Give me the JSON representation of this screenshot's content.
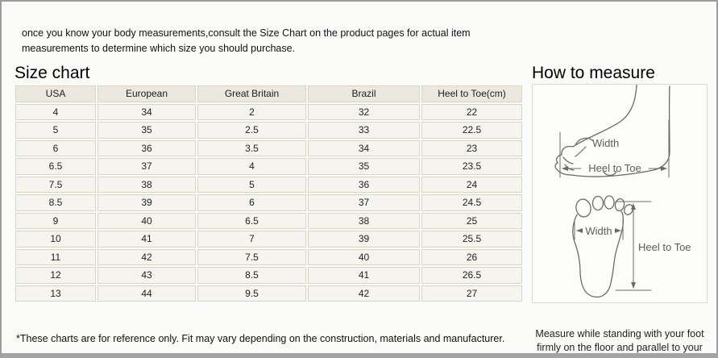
{
  "intro_text": "once you know your body measurements,consult the Size Chart on the product pages for actual item measurements to determine which size you should purchase.",
  "size_chart": {
    "title": "Size chart",
    "columns": [
      "USA",
      "European",
      "Great Britain",
      "Brazil",
      "Heel to Toe(cm)"
    ],
    "rows": [
      [
        "4",
        "34",
        "2",
        "32",
        "22"
      ],
      [
        "5",
        "35",
        "2.5",
        "33",
        "22.5"
      ],
      [
        "6",
        "36",
        "3.5",
        "34",
        "23"
      ],
      [
        "6.5",
        "37",
        "4",
        "35",
        "23.5"
      ],
      [
        "7.5",
        "38",
        "5",
        "36",
        "24"
      ],
      [
        "8.5",
        "39",
        "6",
        "37",
        "24.5"
      ],
      [
        "9",
        "40",
        "6.5",
        "38",
        "25"
      ],
      [
        "10",
        "41",
        "7",
        "39",
        "25.5"
      ],
      [
        "11",
        "42",
        "7.5",
        "40",
        "26"
      ],
      [
        "12",
        "43",
        "8.5",
        "41",
        "26.5"
      ],
      [
        "13",
        "44",
        "9.5",
        "42",
        "27"
      ]
    ],
    "footnote": "*These charts are for reference only. Fit may vary depending on the construction, materials and manufacturer."
  },
  "how_to_measure": {
    "title": "How to measure",
    "side_view": {
      "width_label": "Width",
      "heel_to_toe_label": "Heel to Toe"
    },
    "top_view": {
      "width_label": "Width",
      "heel_to_toe_label": "Heel to Toe"
    },
    "note": "Measure while standing with your foot firmly on the floor and parallel to your other foot."
  },
  "colors": {
    "frame_border": "#9c9c9c",
    "table_border": "#d8d5c2",
    "cell_bg": "#f5f4ee",
    "header_bg": "#ebe9df",
    "diagram_stroke": "#6b6b6b"
  }
}
